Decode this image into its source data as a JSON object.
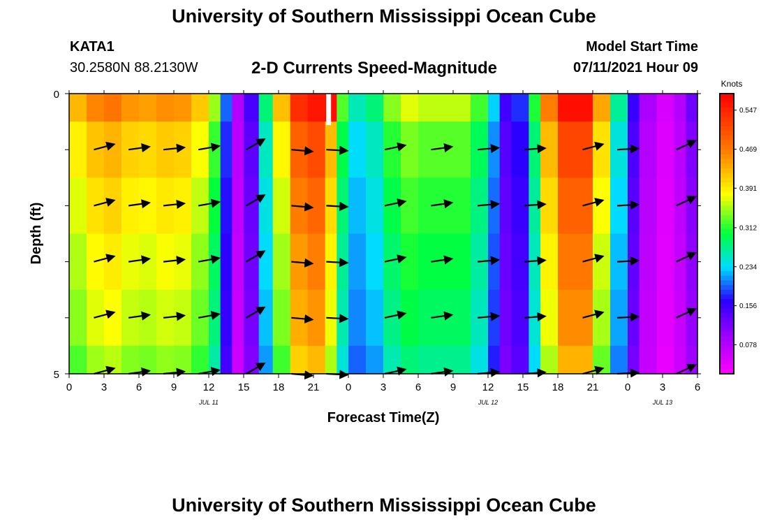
{
  "header": {
    "title": "University of Southern Mississippi Ocean Cube",
    "station_id": "KATA1",
    "coordinates": "30.2580N  88.2130W",
    "variable_title": "2-D Currents Speed-Magnitude",
    "model_start_label": "Model Start Time",
    "model_start_value": "07/11/2021 Hour 09"
  },
  "footer": {
    "title": "University of Southern Mississippi Ocean Cube"
  },
  "chart_data": {
    "type": "heatmap",
    "title": "2-D Currents Speed-Magnitude",
    "xlabel": "Forecast Time(Z)",
    "ylabel": "Depth (ft)",
    "x_ticks": [
      "0",
      "3",
      "6",
      "9",
      "12",
      "15",
      "18",
      "21",
      "0",
      "3",
      "6",
      "9",
      "12",
      "15",
      "18",
      "21",
      "0",
      "3",
      "6"
    ],
    "x_range": [
      0,
      54
    ],
    "date_labels": [
      {
        "label": "JUL 11",
        "x": 12
      },
      {
        "label": "JUL 12",
        "x": 36
      },
      {
        "label": "JUL 13",
        "x": 51
      }
    ],
    "y_range": [
      0,
      5
    ],
    "y_tick_labels": [
      "0",
      "5"
    ],
    "colorbar": {
      "title": "Knots",
      "ticks": [
        "0.547",
        "0.469",
        "0.391",
        "0.312",
        "0.234",
        "0.156",
        "0.078"
      ],
      "range": [
        0.02,
        0.58
      ]
    },
    "depths": [
      0,
      1,
      2,
      3,
      4,
      5
    ],
    "hours": [
      0,
      1.5,
      3,
      4.5,
      6,
      7.5,
      9,
      10.5,
      12,
      13,
      14,
      15,
      16.3,
      17.5,
      19,
      20.5,
      22,
      23,
      24,
      25.5,
      27,
      28.5,
      30,
      31.5,
      33,
      34.5,
      36,
      37,
      38,
      39.5,
      40.5,
      42,
      43.5,
      45,
      46.5,
      48,
      49,
      50.5,
      52,
      53,
      54
    ],
    "speed_profile": [
      0.37,
      0.39,
      0.43,
      0.41,
      0.39,
      0.4,
      0.41,
      0.39,
      0.35,
      0.27,
      0.08,
      0.06,
      0.2,
      0.3,
      0.45,
      0.51,
      0.49,
      0.34,
      0.24,
      0.22,
      0.28,
      0.33,
      0.33,
      0.31,
      0.33,
      0.31,
      0.26,
      0.15,
      0.12,
      0.2,
      0.35,
      0.48,
      0.53,
      0.48,
      0.3,
      0.18,
      0.1,
      0.05,
      0.04,
      0.1,
      0.12
    ],
    "depth_speed_factor": [
      1.12,
      1.02,
      0.97,
      0.93,
      0.9,
      0.85
    ],
    "hot_spot": {
      "hour": 22.3,
      "depth": 0.3,
      "value": 0.57
    },
    "vector_times": [
      3,
      6,
      9,
      12,
      16,
      20,
      23,
      28,
      32,
      36,
      40,
      45,
      48,
      53
    ],
    "vector_depths": [
      1,
      2,
      3,
      4,
      5
    ],
    "vector_angles_deg": [
      15,
      8,
      6,
      10,
      30,
      -5,
      -3,
      12,
      8,
      5,
      4,
      15,
      3,
      25
    ]
  }
}
